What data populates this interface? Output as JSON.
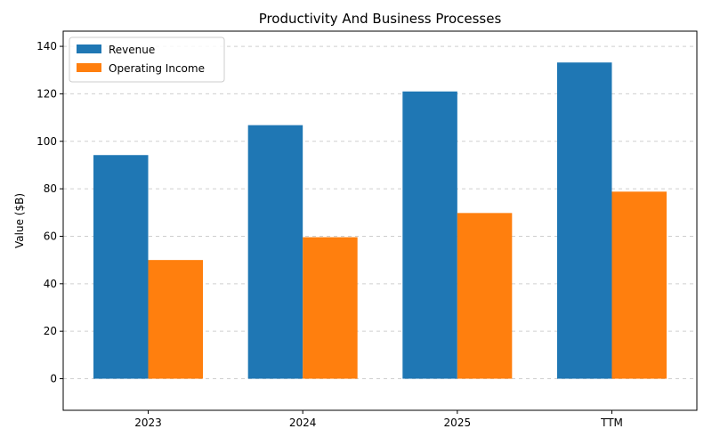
{
  "chart_data": {
    "type": "bar",
    "title": "Productivity And Business Processes",
    "xlabel": "",
    "ylabel": "Value ($B)",
    "categories": [
      "2023",
      "2024",
      "2025",
      "TTM"
    ],
    "series": [
      {
        "name": "Revenue",
        "values": [
          94.2,
          106.8,
          121.0,
          133.2
        ],
        "color": "#1f77b4"
      },
      {
        "name": "Operating Income",
        "values": [
          50.0,
          59.6,
          69.8,
          78.8
        ],
        "color": "#ff7f0e"
      }
    ],
    "ylim": [
      -13.3,
      146.4
    ],
    "yticks": [
      0,
      20,
      40,
      60,
      80,
      100,
      120,
      140
    ],
    "grid": true,
    "legend_position": "top-left"
  }
}
